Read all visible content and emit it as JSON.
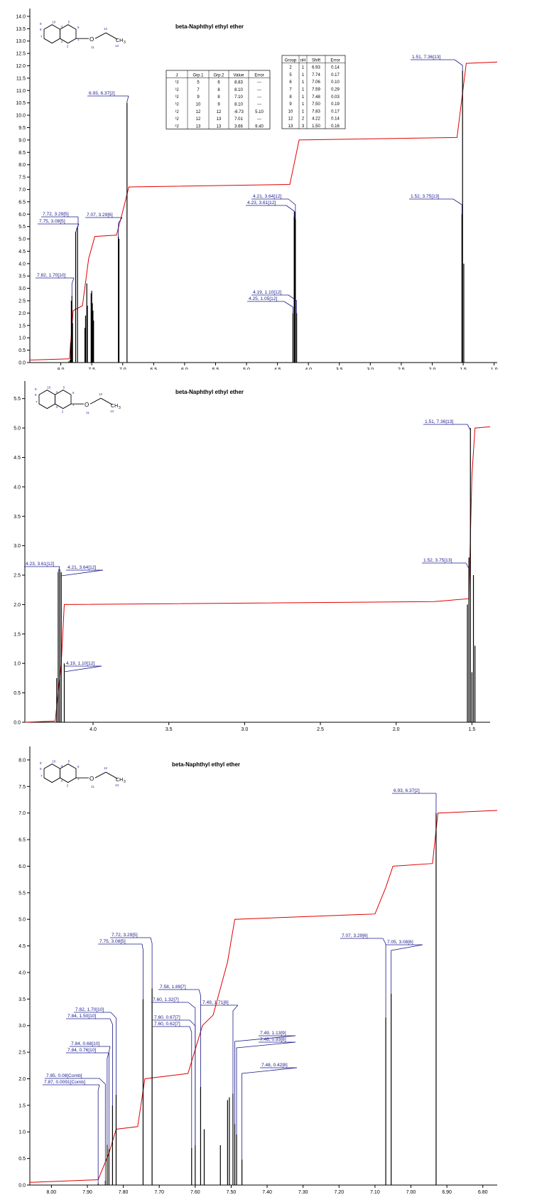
{
  "panels": [
    {
      "title": "beta-Naphthyl ethyl ether",
      "xlim": [
        8.5,
        0.95
      ],
      "ylim": [
        0,
        14.2
      ],
      "xticks": [
        "8.0",
        "7.5",
        "7.0",
        "6.5",
        "6.0",
        "5.5",
        "5.0",
        "4.5",
        "4.0",
        "3.5",
        "3.0",
        "2.5",
        "2.0",
        "1.5",
        "1.0"
      ],
      "yticks": [
        "0.0",
        "0.5",
        "1.0",
        "1.5",
        "2.0",
        "2.5",
        "3.0",
        "3.5",
        "4.0",
        "4.5",
        "5.0",
        "5.5",
        "6.0",
        "6.5",
        "7.0",
        "7.5",
        "8.0",
        "8.5",
        "9.0",
        "9.5",
        "10.0",
        "10.5",
        "11.0",
        "11.5",
        "12.0",
        "12.5",
        "13.0",
        "13.5",
        "14.0"
      ],
      "j_table": {
        "headers": [
          "J",
          "Grp.1",
          "Grp.2",
          "Value",
          "Error"
        ],
        "rows": [
          [
            "³J",
            "5",
            "6",
            "8.83",
            "---"
          ],
          [
            "³J",
            "7",
            "8",
            "8.10",
            "---"
          ],
          [
            "³J",
            "9",
            "8",
            "7.10",
            "---"
          ],
          [
            "³J",
            "10",
            "9",
            "8.10",
            "---"
          ],
          [
            "²J",
            "12",
            "12",
            "-6.73",
            "5.10"
          ],
          [
            "³J",
            "12",
            "13",
            "7.01",
            "---"
          ],
          [
            "²J",
            "13",
            "13",
            "3.66",
            "9.40"
          ]
        ]
      },
      "shift_table": {
        "headers": [
          "Group",
          "nH",
          "Shift",
          "Error"
        ],
        "rows": [
          [
            "2",
            "1",
            "6.93",
            "0.14"
          ],
          [
            "5",
            "1",
            "7.74",
            "0.17"
          ],
          [
            "6",
            "1",
            "7.06",
            "0.10"
          ],
          [
            "7",
            "1",
            "7.59",
            "0.29"
          ],
          [
            "8",
            "1",
            "7.48",
            "0.03"
          ],
          [
            "9",
            "1",
            "7.50",
            "0.19"
          ],
          [
            "10",
            "1",
            "7.83",
            "0.17"
          ],
          [
            "12",
            "2",
            "4.22",
            "0.14"
          ],
          [
            "13",
            "3",
            "1.50",
            "0.16"
          ]
        ]
      }
    },
    {
      "title": "beta-Naphthyl ethyl ether",
      "xlim": [
        4.45,
        1.38
      ],
      "ylim": [
        0,
        5.75
      ],
      "xticks": [
        "4.0",
        "3.5",
        "3.0",
        "2.5",
        "2.0",
        "1.5"
      ],
      "yticks": [
        "0.0",
        "0.5",
        "1.0",
        "1.5",
        "2.0",
        "2.5",
        "3.0",
        "3.5",
        "4.0",
        "4.5",
        "5.0",
        "5.5"
      ]
    },
    {
      "title": "beta-Naphthyl ethyl ether",
      "xlim": [
        8.06,
        6.76
      ],
      "ylim": [
        0,
        8.2
      ],
      "xticks": [
        "8.00",
        "7.90",
        "7.80",
        "7.70",
        "7.60",
        "7.50",
        "7.40",
        "7.30",
        "7.20",
        "7.10",
        "7.00",
        "6.90",
        "6.80"
      ],
      "yticks": [
        "0.0",
        "0.5",
        "1.0",
        "1.5",
        "2.0",
        "2.5",
        "3.0",
        "3.5",
        "4.0",
        "4.5",
        "5.0",
        "5.5",
        "6.0",
        "6.5",
        "7.0",
        "7.5",
        "8.0"
      ]
    }
  ],
  "molecule_atoms": [
    "10",
    "5",
    "7",
    "6",
    "8",
    "9",
    "3",
    "4",
    "1",
    "2",
    "11",
    "12",
    "13"
  ],
  "molecule_group_labels": [
    "O",
    "CH",
    "3"
  ],
  "colors": {
    "spectrum": "#000000",
    "integral": "#e00000",
    "label": "#1a1a8c",
    "atom": "#2a2aa8"
  },
  "chart_data": [
    {
      "type": "line",
      "title": "beta-Naphthyl ethyl ether",
      "xlim": [
        8.5,
        0.95
      ],
      "ylim": [
        0,
        14.2
      ],
      "x_reversed": true,
      "series": [
        {
          "values": [
            [
              7.87,
              0.05
            ],
            [
              7.85,
              0.1
            ],
            [
              7.84,
              0.8
            ],
            [
              7.83,
              2.5
            ],
            [
              7.82,
              2.7
            ],
            [
              7.81,
              1.6
            ],
            [
              7.76,
              5.3
            ],
            [
              7.73,
              5.5
            ],
            [
              7.61,
              1.4
            ],
            [
              7.6,
              1.9
            ],
            [
              7.58,
              3.2
            ],
            [
              7.57,
              2.3
            ],
            [
              7.51,
              2.8
            ],
            [
              7.5,
              2.9
            ],
            [
              7.49,
              2.4
            ],
            [
              7.48,
              2.1
            ],
            [
              7.47,
              1.7
            ],
            [
              7.07,
              5.1
            ],
            [
              7.06,
              5.0
            ],
            [
              6.93,
              10.5
            ],
            [
              4.25,
              2.0
            ],
            [
              4.23,
              5.9
            ],
            [
              4.22,
              6.1
            ],
            [
              4.21,
              5.8
            ],
            [
              4.19,
              2.0
            ],
            [
              1.52,
              6.0
            ],
            [
              1.51,
              11.8
            ],
            [
              1.49,
              4.0
            ]
          ]
        },
        {
          "values": [
            [
              8.5,
              0.1
            ],
            [
              7.86,
              0.15
            ],
            [
              7.8,
              2.1
            ],
            [
              7.65,
              2.3
            ],
            [
              7.55,
              4.2
            ],
            [
              7.45,
              5.1
            ],
            [
              7.1,
              5.15
            ],
            [
              7.0,
              6.1
            ],
            [
              6.9,
              7.1
            ],
            [
              4.3,
              7.2
            ],
            [
              4.15,
              9.0
            ],
            [
              1.6,
              9.1
            ],
            [
              1.45,
              12.1
            ],
            [
              0.95,
              12.15
            ]
          ]
        }
      ],
      "annotations": [
        "7.82, 1.70[10]",
        "7.75, 3.08[5]",
        "7.72, 3.29[5]",
        "7.07, 3.29[6]",
        "6.93, 6.37[2]",
        "4.21, 3.64[12]",
        "4.23, 3.61[12]",
        "4.19, 1.10[12]",
        "4.25, 1.05[12]",
        "1.51, 7.36[13]",
        "1.52, 3.75[13]"
      ]
    },
    {
      "type": "line",
      "title": "beta-Naphthyl ethyl ether",
      "xlim": [
        4.45,
        1.38
      ],
      "ylim": [
        0,
        5.75
      ],
      "x_reversed": true,
      "series": [
        {
          "values": [
            [
              4.24,
              0.75
            ],
            [
              4.23,
              2.55
            ],
            [
              4.22,
              2.6
            ],
            [
              4.21,
              2.55
            ],
            [
              4.19,
              1.0
            ],
            [
              1.53,
              2.0
            ],
            [
              1.52,
              2.8
            ],
            [
              1.51,
              5.0
            ],
            [
              1.5,
              0.85
            ],
            [
              1.49,
              2.5
            ],
            [
              1.48,
              1.3
            ]
          ]
        },
        {
          "values": [
            [
              4.45,
              0.0
            ],
            [
              4.25,
              0.02
            ],
            [
              4.21,
              1.0
            ],
            [
              4.19,
              2.0
            ],
            [
              1.75,
              2.05
            ],
            [
              1.52,
              2.1
            ],
            [
              1.5,
              4.2
            ],
            [
              1.48,
              5.0
            ],
            [
              1.38,
              5.02
            ]
          ]
        }
      ],
      "annotations": [
        "4.23, 3.61[12]",
        "4.21, 3.64[12]",
        "4.19, 1.10[12]",
        "1.51, 7.36[13]",
        "1.52, 3.75[13]"
      ]
    },
    {
      "type": "line",
      "title": "beta-Naphthyl ethyl ether",
      "xlim": [
        8.06,
        6.76
      ],
      "ylim": [
        0,
        8.2
      ],
      "x_reversed": true,
      "series": [
        {
          "values": [
            [
              7.87,
              0.03
            ],
            [
              7.85,
              0.08
            ],
            [
              7.845,
              0.76
            ],
            [
              7.84,
              0.68
            ],
            [
              7.83,
              1.5
            ],
            [
              7.82,
              1.7
            ],
            [
              7.745,
              3.5
            ],
            [
              7.72,
              3.7
            ],
            [
              7.61,
              0.7
            ],
            [
              7.6,
              0.75
            ],
            [
              7.585,
              1.85
            ],
            [
              7.575,
              1.05
            ],
            [
              7.53,
              0.75
            ],
            [
              7.51,
              1.6
            ],
            [
              7.505,
              1.65
            ],
            [
              7.495,
              1.72
            ],
            [
              7.49,
              1.15
            ],
            [
              7.485,
              0.95
            ],
            [
              7.47,
              0.48
            ],
            [
              7.07,
              3.15
            ],
            [
              7.055,
              3.6
            ],
            [
              6.93,
              7.0
            ]
          ]
        },
        {
          "values": [
            [
              8.06,
              0.05
            ],
            [
              7.87,
              0.1
            ],
            [
              7.84,
              0.6
            ],
            [
              7.82,
              1.05
            ],
            [
              7.76,
              1.1
            ],
            [
              7.74,
              2.0
            ],
            [
              7.62,
              2.1
            ],
            [
              7.58,
              3.0
            ],
            [
              7.55,
              3.2
            ],
            [
              7.51,
              4.2
            ],
            [
              7.49,
              5.0
            ],
            [
              7.1,
              5.1
            ],
            [
              7.07,
              5.6
            ],
            [
              7.05,
              6.0
            ],
            [
              6.94,
              6.05
            ],
            [
              6.925,
              7.0
            ],
            [
              6.76,
              7.05
            ]
          ]
        }
      ],
      "annotations": [
        "7.85, 0.08[Comb]",
        "7.87, 0.0091[Comb]",
        "7.84, 0.68[10]",
        "7.84, 0.76[10]",
        "7.82, 1.70[10]",
        "7.84, 1.50[10]",
        "7.72, 3.29[5]",
        "7.75, 3.08[5]",
        "7.58, 1.89[7]",
        "7.60, 1.32[7]",
        "7.60, 0.67[7]",
        "7.60, 0.62[7]",
        "7.49, 1.71[8]",
        "7.49, 1.13[9]",
        "7.48, 0.93[8]",
        "7.48, 0.42[8]",
        "7.07, 3.29[6]",
        "7.05, 3.08[6]",
        "6.93, 6.37[2]"
      ]
    }
  ]
}
